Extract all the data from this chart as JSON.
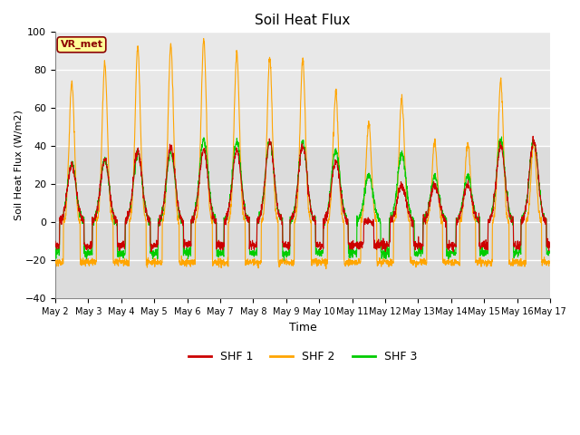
{
  "title": "Soil Heat Flux",
  "xlabel": "Time",
  "ylabel": "Soil Heat Flux (W/m2)",
  "ylim": [
    -40,
    100
  ],
  "xlim": [
    0,
    15
  ],
  "xtick_labels": [
    "May 2",
    "May 3",
    "May 4",
    "May 5",
    "May 6",
    "May 7",
    "May 8",
    "May 9",
    "May 10",
    "May 11",
    "May 12",
    "May 13",
    "May 14",
    "May 15",
    "May 16",
    "May 17"
  ],
  "shf1_color": "#CC0000",
  "shf2_color": "#FFA500",
  "shf3_color": "#00CC00",
  "bg_color": "#DCDCDC",
  "bg_color_upper": "#E8E8E8",
  "annotation_text": "VR_met",
  "annotation_bbox_facecolor": "#FFFF99",
  "annotation_bbox_edgecolor": "#8B0000",
  "grid_color": "#C8C8C8",
  "legend_labels": [
    "SHF 1",
    "SHF 2",
    "SHF 3"
  ],
  "shf2_day_peaks": [
    73,
    83,
    91,
    93,
    96,
    89,
    86,
    86,
    68,
    52,
    65,
    43,
    41,
    74,
    42
  ],
  "shf1_day_peaks": [
    30,
    33,
    38,
    40,
    38,
    38,
    42,
    41,
    32,
    1,
    20,
    20,
    20,
    40,
    43
  ],
  "shf3_day_peaks": [
    31,
    33,
    36,
    37,
    44,
    43,
    43,
    42,
    38,
    25,
    36,
    24,
    24,
    43,
    43
  ],
  "shf1_night": -12,
  "shf2_night": -21,
  "shf3_night": -16
}
